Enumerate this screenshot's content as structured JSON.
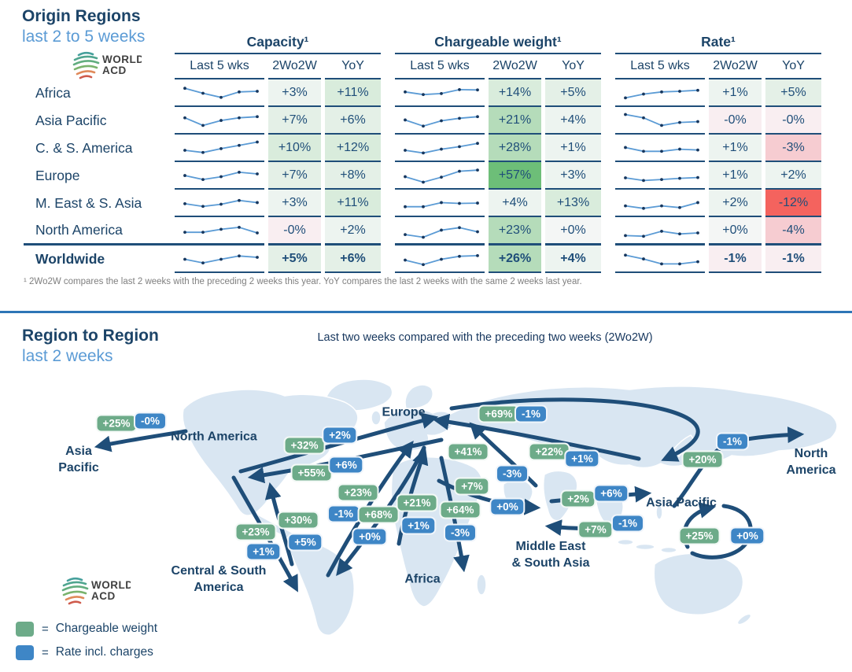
{
  "origin": {
    "title": "Origin Regions",
    "subtitle": "last 2 to 5 weeks",
    "logo_text_line1": "WORLD",
    "logo_text_line2": "ACD",
    "footnote": "¹ 2Wo2W compares the last 2 weeks with the preceding 2 weeks this year. YoY compares the last 2 weeks with the same 2 weeks last year."
  },
  "region_section": {
    "title": "Region to Region",
    "subtitle": "last 2 weeks",
    "map_caption": "Last two weeks compared with the preceding two weeks (2Wo2W)",
    "legend": [
      {
        "symbol": "=",
        "label": "Chargeable weight",
        "color": "#6dab89"
      },
      {
        "symbol": "=",
        "label": "Rate incl. charges",
        "color": "#3e86c6"
      }
    ],
    "map_labels": [
      {
        "id": "na-left",
        "text": "North America"
      },
      {
        "id": "ap-left",
        "text": "Asia\nPacific"
      },
      {
        "id": "europe",
        "text": "Europe"
      },
      {
        "id": "csa",
        "text": "Central & South\nAmerica"
      },
      {
        "id": "africa",
        "text": "Africa"
      },
      {
        "id": "me",
        "text": "Middle East\n& South Asia"
      },
      {
        "id": "ap-right",
        "text": "Asia Pacific"
      },
      {
        "id": "na-right",
        "text": "North\nAmerica"
      }
    ]
  },
  "colors": {
    "navy": "#1f4e79",
    "heading_navy": "#1c4468",
    "light_blue": "#5b9bd5",
    "green_badge": "#6dab89",
    "blue_badge": "#3e86c6",
    "strong_green": "#6dbe78",
    "strong_red": "#f4635e",
    "land": "#d9e6f2",
    "divider_blue": "#2e75b6"
  },
  "chart_data": [
    {
      "type": "table",
      "title": "Origin Regions — last 2 to 5 weeks",
      "groups": [
        "Capacity¹",
        "Chargeable weight¹",
        "Rate¹"
      ],
      "columns": [
        "Last 5 wks",
        "2Wo2W",
        "YoY"
      ],
      "rows": [
        {
          "region": "Africa",
          "capacity": {
            "spark": [
              80,
              50,
              25,
              58,
              62
            ],
            "w2o2w": "+3%",
            "yoy": "+11%"
          },
          "chargeable_weight": {
            "spark": [
              58,
              42,
              48,
              72,
              70
            ],
            "w2o2w": "+14%",
            "yoy": "+5%"
          },
          "rate": {
            "spark": [
              22,
              45,
              58,
              62,
              68
            ],
            "w2o2w": "+1%",
            "yoy": "+5%"
          }
        },
        {
          "region": "Asia Pacific",
          "capacity": {
            "spark": [
              68,
              22,
              52,
              68,
              75
            ],
            "w2o2w": "+7%",
            "yoy": "+6%"
          },
          "chargeable_weight": {
            "spark": [
              55,
              18,
              50,
              65,
              75
            ],
            "w2o2w": "+21%",
            "yoy": "+4%"
          },
          "rate": {
            "spark": [
              88,
              68,
              22,
              40,
              45
            ],
            "w2o2w": "-0%",
            "yoy": "-0%"
          }
        },
        {
          "region": "C. & S. America",
          "capacity": {
            "spark": [
              38,
              25,
              48,
              68,
              88
            ],
            "w2o2w": "+10%",
            "yoy": "+12%"
          },
          "chargeable_weight": {
            "spark": [
              38,
              22,
              45,
              60,
              80
            ],
            "w2o2w": "+28%",
            "yoy": "+1%"
          },
          "rate": {
            "spark": [
              55,
              32,
              32,
              45,
              40
            ],
            "w2o2w": "+1%",
            "yoy": "-3%"
          }
        },
        {
          "region": "Europe",
          "capacity": {
            "spark": [
              52,
              28,
              45,
              72,
              62
            ],
            "w2o2w": "+7%",
            "yoy": "+8%"
          },
          "chargeable_weight": {
            "spark": [
              45,
              12,
              42,
              78,
              85
            ],
            "w2o2w": "+57%",
            "yoy": "+3%"
          },
          "rate": {
            "spark": [
              38,
              22,
              28,
              35,
              40
            ],
            "w2o2w": "+1%",
            "yoy": "+2%"
          }
        },
        {
          "region": "M. East & S. Asia",
          "capacity": {
            "spark": [
              48,
              32,
              45,
              68,
              55
            ],
            "w2o2w": "+3%",
            "yoy": "+11%"
          },
          "chargeable_weight": {
            "spark": [
              30,
              30,
              55,
              50,
              52
            ],
            "w2o2w": "+4%",
            "yoy": "+13%"
          },
          "rate": {
            "spark": [
              35,
              20,
              35,
              25,
              55
            ],
            "w2o2w": "+2%",
            "yoy": "-12%"
          }
        },
        {
          "region": "North America",
          "capacity": {
            "spark": [
              42,
              42,
              60,
              72,
              38
            ],
            "w2o2w": "-0%",
            "yoy": "+2%"
          },
          "chargeable_weight": {
            "spark": [
              28,
              12,
              55,
              70,
              45
            ],
            "w2o2w": "+23%",
            "yoy": "+0%"
          },
          "rate": {
            "spark": [
              22,
              18,
              48,
              32,
              38
            ],
            "w2o2w": "+0%",
            "yoy": "-4%"
          }
        },
        {
          "region": "Worldwide",
          "capacity": {
            "spark": [
              50,
              28,
              50,
              70,
              62
            ],
            "w2o2w": "+5%",
            "yoy": "+6%"
          },
          "chargeable_weight": {
            "spark": [
              45,
              18,
              50,
              68,
              72
            ],
            "w2o2w": "+26%",
            "yoy": "+4%"
          },
          "rate": {
            "spark": [
              75,
              52,
              22,
              22,
              35
            ],
            "w2o2w": "-1%",
            "yoy": "-1%"
          }
        }
      ]
    },
    {
      "type": "map-flows",
      "title": "Region to Region — last two weeks compared with the preceding two weeks (2Wo2W)",
      "regions": [
        "North America",
        "Central & South America",
        "Europe",
        "Africa",
        "Middle East & South Asia",
        "Asia Pacific"
      ],
      "flows": [
        {
          "id": "na-ap",
          "from": "North America",
          "to": "Asia Pacific",
          "chargeable_weight": "+25%",
          "rate": "-0%"
        },
        {
          "id": "na-eu",
          "from": "North America",
          "to": "Europe",
          "chargeable_weight": "+32%",
          "rate": "+2%"
        },
        {
          "id": "eu-na",
          "from": "Europe",
          "to": "North America",
          "chargeable_weight": "+55%",
          "rate": "+6%"
        },
        {
          "id": "csa-eu",
          "from": "Central & South America",
          "to": "Europe",
          "chargeable_weight": "+23%",
          "rate": "-1%"
        },
        {
          "id": "eu-csa",
          "from": "Europe",
          "to": "Central & South America",
          "chargeable_weight": "+68%",
          "rate": "+0%"
        },
        {
          "id": "csa-na",
          "from": "Central & South America",
          "to": "North America",
          "chargeable_weight": "+30%",
          "rate": "+5%"
        },
        {
          "id": "na-csa",
          "from": "North America",
          "to": "Central & South America",
          "chargeable_weight": "+23%",
          "rate": "+1%"
        },
        {
          "id": "af-eu",
          "from": "Africa",
          "to": "Europe",
          "chargeable_weight": "+21%",
          "rate": "+1%"
        },
        {
          "id": "eu-af",
          "from": "Europe",
          "to": "Africa",
          "chargeable_weight": "+64%",
          "rate": "-3%"
        },
        {
          "id": "eu-ap-n",
          "from": "Europe",
          "to": "Asia Pacific",
          "chargeable_weight": "+69%",
          "rate": "-1%"
        },
        {
          "id": "ap-eu",
          "from": "Asia Pacific",
          "to": "Europe",
          "chargeable_weight": "+22%",
          "rate": "+1%"
        },
        {
          "id": "me-eu",
          "from": "Middle East & South Asia",
          "to": "Europe",
          "chargeable_weight": "+41%",
          "rate": "-3%"
        },
        {
          "id": "eu-me",
          "from": "Europe",
          "to": "Middle East & South Asia",
          "chargeable_weight": "+7%",
          "rate": "+0%"
        },
        {
          "id": "me-ap",
          "from": "Middle East & South Asia",
          "to": "Asia Pacific",
          "chargeable_weight": "+2%",
          "rate": "+6%"
        },
        {
          "id": "ap-me",
          "from": "Asia Pacific",
          "to": "Middle East & South Asia",
          "chargeable_weight": "+7%",
          "rate": "-1%"
        },
        {
          "id": "ap-na",
          "from": "Asia Pacific",
          "to": "North America",
          "chargeable_weight": "+20%",
          "rate": "-1%"
        },
        {
          "id": "ap-ap",
          "from": "Asia Pacific",
          "to": "Asia Pacific",
          "chargeable_weight": "+25%",
          "rate": "+0%"
        }
      ]
    }
  ]
}
